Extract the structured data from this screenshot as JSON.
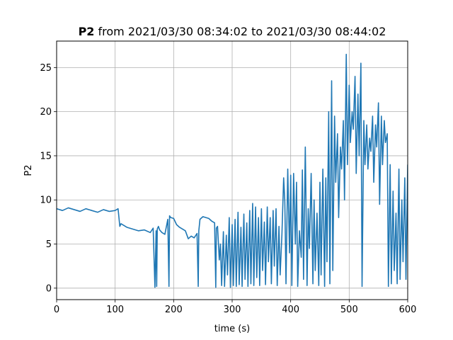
{
  "chart_data": {
    "type": "line",
    "title_bold": "P2",
    "title_rest": " from 2021/03/30 08:34:02 to 2021/03/30 08:44:02",
    "xlabel": "time (s)",
    "ylabel": "P2",
    "xlim": [
      0,
      600
    ],
    "ylim": [
      -1.3,
      28.0
    ],
    "xticks": [
      0,
      100,
      200,
      300,
      400,
      500,
      600
    ],
    "yticks": [
      0,
      5,
      10,
      15,
      20,
      25
    ],
    "grid": true,
    "line_color": "#1f77b4",
    "series": [
      {
        "x": [
          0,
          10,
          20,
          30,
          40,
          50,
          60,
          70,
          80,
          90,
          100,
          105,
          108,
          110,
          115,
          120,
          130,
          140,
          150,
          160,
          165,
          168,
          170,
          171,
          172,
          174,
          176,
          180,
          185,
          190,
          192,
          193,
          195,
          200,
          205,
          210,
          220,
          225,
          230,
          235,
          240,
          242,
          243,
          245,
          250,
          255,
          260,
          265,
          270,
          272,
          273,
          275,
          278,
          280,
          282,
          285,
          287,
          290,
          292,
          295,
          297,
          300,
          302,
          305,
          307,
          310,
          312,
          315,
          317,
          320,
          322,
          325,
          327,
          330,
          332,
          335,
          337,
          340,
          342,
          345,
          347,
          350,
          352,
          355,
          357,
          360,
          362,
          365,
          367,
          370,
          372,
          375,
          377,
          380,
          382,
          385,
          388,
          390,
          392,
          395,
          398,
          400,
          402,
          405,
          408,
          410,
          412,
          415,
          418,
          420,
          422,
          425,
          428,
          430,
          432,
          435,
          438,
          440,
          442,
          445,
          448,
          450,
          452,
          455,
          458,
          460,
          462,
          465,
          467,
          470,
          472,
          475,
          477,
          480,
          482,
          485,
          487,
          490,
          492,
          495,
          497,
          500,
          502,
          505,
          507,
          510,
          512,
          515,
          517,
          520,
          522,
          525,
          527,
          530,
          532,
          535,
          537,
          540,
          542,
          545,
          547,
          550,
          552,
          555,
          557,
          560,
          562,
          565,
          567,
          570,
          572,
          575,
          577,
          580,
          582,
          585,
          587,
          590,
          592,
          595,
          597,
          600
        ],
        "values": [
          9.0,
          8.8,
          9.1,
          8.9,
          8.7,
          9.0,
          8.8,
          8.6,
          8.9,
          8.7,
          8.8,
          9.0,
          7.0,
          7.3,
          7.1,
          6.9,
          6.7,
          6.5,
          6.6,
          6.3,
          6.8,
          0.1,
          6.5,
          0.2,
          6.7,
          7.0,
          6.6,
          6.3,
          6.1,
          7.8,
          0.2,
          8.2,
          8.0,
          7.9,
          7.2,
          6.9,
          6.5,
          5.6,
          5.9,
          5.7,
          6.2,
          0.2,
          6.5,
          7.8,
          8.1,
          8.0,
          7.9,
          7.6,
          7.4,
          0.1,
          6.8,
          7.0,
          3.2,
          5.0,
          0.3,
          6.4,
          0.2,
          6.0,
          1.5,
          8.0,
          0.1,
          7.2,
          0.3,
          7.8,
          0.2,
          8.6,
          0.4,
          6.9,
          0.2,
          8.4,
          1.0,
          7.4,
          0.2,
          8.8,
          0.5,
          9.6,
          0.3,
          9.2,
          1.2,
          8.0,
          0.3,
          9.0,
          2.0,
          7.5,
          0.4,
          9.2,
          3.0,
          8.0,
          0.5,
          8.8,
          2.5,
          9.0,
          0.3,
          7.0,
          1.5,
          6.0,
          12.5,
          9.8,
          0.5,
          13.5,
          4.0,
          12.8,
          0.3,
          13.0,
          5.0,
          12.0,
          0.2,
          6.5,
          3.5,
          13.4,
          1.0,
          16.0,
          0.3,
          9.0,
          4.5,
          13.0,
          0.5,
          10.0,
          2.0,
          8.5,
          0.3,
          12.0,
          1.5,
          13.5,
          0.2,
          12.5,
          3.0,
          20.0,
          0.5,
          23.5,
          2.0,
          19.5,
          12.0,
          17.5,
          8.0,
          16.0,
          13.5,
          19.0,
          10.0,
          26.5,
          14.0,
          23.0,
          16.5,
          20.0,
          18.0,
          24.0,
          13.0,
          22.0,
          15.0,
          25.5,
          0.2,
          19.0,
          14.0,
          18.5,
          13.5,
          17.0,
          15.5,
          19.5,
          12.0,
          18.5,
          16.0,
          21.0,
          9.5,
          19.5,
          14.0,
          19.0,
          16.5,
          17.5,
          0.2,
          14.0,
          0.5,
          11.0,
          2.0,
          8.5,
          0.5,
          13.5,
          1.0,
          10.0,
          3.0,
          12.5,
          1.0,
          14.0
        ]
      }
    ]
  }
}
